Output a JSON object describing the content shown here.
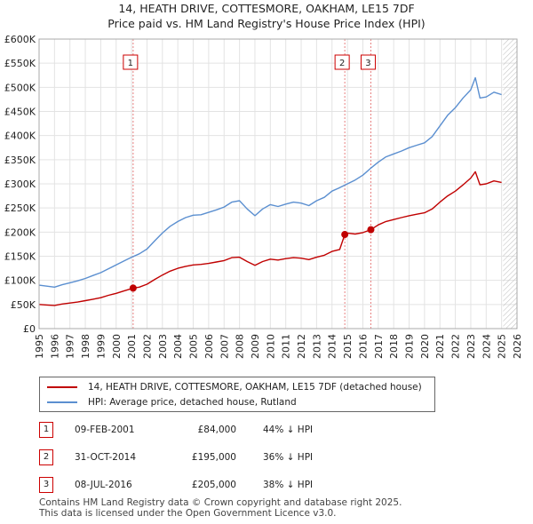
{
  "titles": {
    "line1": "14, HEATH DRIVE, COTTESMORE, OAKHAM, LE15 7DF",
    "line2": "Price paid vs. HM Land Registry's House Price Index (HPI)"
  },
  "legend": {
    "property_label": "14, HEATH DRIVE, COTTESMORE, OAKHAM, LE15 7DF (detached house)",
    "hpi_label": "HPI: Average price, detached house, Rutland"
  },
  "sales": [
    {
      "num": "1",
      "date": "09-FEB-2001",
      "price": "£84,000",
      "delta": "44% ↓ HPI"
    },
    {
      "num": "2",
      "date": "31-OCT-2014",
      "price": "£195,000",
      "delta": "36% ↓ HPI"
    },
    {
      "num": "3",
      "date": "08-JUL-2016",
      "price": "£205,000",
      "delta": "38% ↓ HPI"
    }
  ],
  "footer": {
    "line1": "Contains HM Land Registry data © Crown copyright and database right 2025.",
    "line2": "This data is licensed under the Open Government Licence v3.0."
  },
  "colors": {
    "property": "#c00000",
    "hpi": "#5b8fd0",
    "grid": "#e3e3e3",
    "vline": "#e88080",
    "future_hatch": "#bbbbbb"
  },
  "chart_data": {
    "type": "line",
    "xlim": [
      1995,
      2026
    ],
    "ylim": [
      0,
      600000
    ],
    "x_ticks": [
      "1995",
      "1996",
      "1997",
      "1998",
      "1999",
      "2000",
      "2001",
      "2002",
      "2003",
      "2004",
      "2005",
      "2006",
      "2007",
      "2008",
      "2009",
      "2010",
      "2011",
      "2012",
      "2013",
      "2014",
      "2015",
      "2016",
      "2017",
      "2018",
      "2019",
      "2020",
      "2021",
      "2022",
      "2023",
      "2024",
      "2025",
      "2026"
    ],
    "y_ticks": [
      {
        "value": 0,
        "label": "£0"
      },
      {
        "value": 50000,
        "label": "£50K"
      },
      {
        "value": 100000,
        "label": "£100K"
      },
      {
        "value": 150000,
        "label": "£150K"
      },
      {
        "value": 200000,
        "label": "£200K"
      },
      {
        "value": 250000,
        "label": "£250K"
      },
      {
        "value": 300000,
        "label": "£300K"
      },
      {
        "value": 350000,
        "label": "£350K"
      },
      {
        "value": 400000,
        "label": "£400K"
      },
      {
        "value": 450000,
        "label": "£450K"
      },
      {
        "value": 500000,
        "label": "£500K"
      },
      {
        "value": 550000,
        "label": "£550K"
      },
      {
        "value": 600000,
        "label": "£600K"
      }
    ],
    "grid": true,
    "future_start": 2025.1,
    "series": [
      {
        "name": "HPI: Average price, detached house, Rutland",
        "x": [
          1995.0,
          1995.5,
          1996.0,
          1996.5,
          1997.0,
          1997.5,
          1998.0,
          1998.5,
          1999.0,
          1999.5,
          2000.0,
          2000.5,
          2001.0,
          2001.5,
          2002.0,
          2002.5,
          2003.0,
          2003.5,
          2004.0,
          2004.5,
          2005.0,
          2005.5,
          2006.0,
          2006.5,
          2007.0,
          2007.5,
          2008.0,
          2008.5,
          2009.0,
          2009.5,
          2010.0,
          2010.5,
          2011.0,
          2011.5,
          2012.0,
          2012.5,
          2013.0,
          2013.5,
          2014.0,
          2014.5,
          2015.0,
          2015.5,
          2016.0,
          2016.5,
          2017.0,
          2017.5,
          2018.0,
          2018.5,
          2019.0,
          2019.5,
          2020.0,
          2020.5,
          2021.0,
          2021.5,
          2022.0,
          2022.5,
          2023.0,
          2023.3,
          2023.6,
          2024.0,
          2024.5,
          2025.0
        ],
        "y": [
          90000,
          88000,
          86000,
          91000,
          95000,
          99000,
          104000,
          110000,
          116000,
          124000,
          132000,
          140000,
          148000,
          155000,
          165000,
          182000,
          198000,
          212000,
          222000,
          230000,
          235000,
          236000,
          241000,
          246000,
          252000,
          262000,
          265000,
          248000,
          234000,
          248000,
          257000,
          253000,
          258000,
          262000,
          260000,
          255000,
          265000,
          272000,
          285000,
          292000,
          300000,
          308000,
          318000,
          332000,
          345000,
          356000,
          362000,
          368000,
          375000,
          380000,
          385000,
          398000,
          420000,
          442000,
          458000,
          478000,
          495000,
          520000,
          478000,
          480000,
          490000,
          485000
        ]
      },
      {
        "name": "14, HEATH DRIVE, COTTESMORE, OAKHAM, LE15 7DF (detached house)",
        "x": [
          1995.0,
          1995.5,
          1996.0,
          1996.5,
          1997.0,
          1997.5,
          1998.0,
          1998.5,
          1999.0,
          1999.5,
          2000.0,
          2000.5,
          2001.1,
          2001.5,
          2002.0,
          2002.5,
          2003.0,
          2003.5,
          2004.0,
          2004.5,
          2005.0,
          2005.5,
          2006.0,
          2006.5,
          2007.0,
          2007.5,
          2008.0,
          2008.5,
          2009.0,
          2009.5,
          2010.0,
          2010.5,
          2011.0,
          2011.5,
          2012.0,
          2012.5,
          2013.0,
          2013.5,
          2014.0,
          2014.5,
          2014.83,
          2015.0,
          2015.5,
          2016.0,
          2016.52,
          2017.0,
          2017.5,
          2018.0,
          2018.5,
          2019.0,
          2019.5,
          2020.0,
          2020.5,
          2021.0,
          2021.5,
          2022.0,
          2022.5,
          2023.0,
          2023.3,
          2023.6,
          2024.0,
          2024.5,
          2025.0
        ],
        "y": [
          50000,
          49000,
          48000,
          51000,
          53000,
          55000,
          58000,
          61000,
          64000,
          69000,
          73000,
          78000,
          84000,
          86000,
          92000,
          102000,
          111000,
          119000,
          125000,
          129000,
          132000,
          133000,
          135000,
          138000,
          141000,
          147000,
          148000,
          139000,
          131000,
          139000,
          144000,
          142000,
          145000,
          147000,
          146000,
          143000,
          148000,
          152000,
          160000,
          164000,
          195000,
          198000,
          196000,
          199000,
          205000,
          215000,
          222000,
          226000,
          230000,
          234000,
          237000,
          240000,
          248000,
          262000,
          275000,
          285000,
          298000,
          312000,
          325000,
          298000,
          300000,
          306000,
          303000
        ]
      }
    ],
    "markers": [
      {
        "label": "1",
        "x": 2001.1,
        "y": 84000
      },
      {
        "label": "2",
        "x": 2014.83,
        "y": 195000
      },
      {
        "label": "3",
        "x": 2016.52,
        "y": 205000
      }
    ]
  }
}
